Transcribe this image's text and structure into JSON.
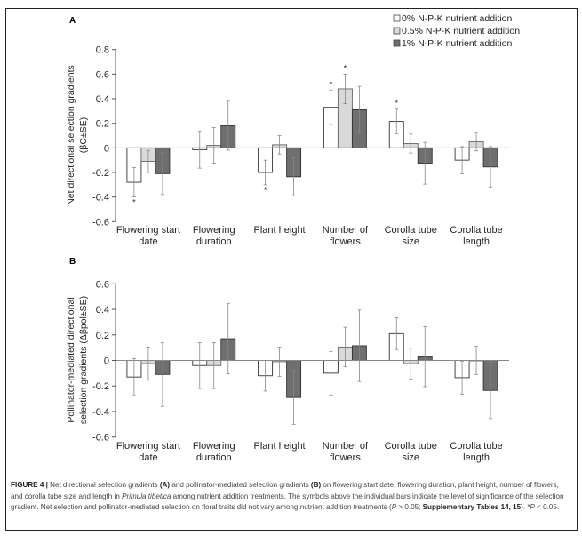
{
  "legend": [
    {
      "label": "0% N-P-K nutrient addition",
      "color": "#ffffff"
    },
    {
      "label": "0.5% N-P-K nutrient addition",
      "color": "#d9d9d9"
    },
    {
      "label": "1% N-P-K nutrient addition",
      "color": "#6f6f6f"
    }
  ],
  "chart_data": [
    {
      "type": "bar",
      "panel": "A",
      "ylabel_line1": "Net directional selection gradients",
      "ylabel_line2": "(βC±SE)",
      "ylim": [
        -0.6,
        0.8
      ],
      "yticks": [
        "0.8",
        "0.6",
        "0.4",
        "0.2",
        "0",
        "-0.2",
        "-0.4",
        "-0.6"
      ],
      "categories": [
        [
          "Flowering start",
          "date"
        ],
        [
          "Flowering",
          "duration"
        ],
        [
          "Plant height",
          ""
        ],
        [
          "Number of",
          "flowers"
        ],
        [
          "Corolla tube",
          "size"
        ],
        [
          "Corolla tube",
          "length"
        ]
      ],
      "series": [
        {
          "name": "0% N-P-K nutrient addition",
          "values": [
            -0.28,
            -0.015,
            -0.2,
            0.33,
            0.215,
            -0.1
          ],
          "se": [
            0.12,
            0.15,
            0.1,
            0.14,
            0.1,
            0.11
          ],
          "significant": [
            true,
            false,
            true,
            true,
            true,
            false
          ]
        },
        {
          "name": "0.5% N-P-K nutrient addition",
          "values": [
            -0.11,
            0.02,
            0.025,
            0.48,
            0.035,
            0.05
          ],
          "se": [
            0.09,
            0.145,
            0.075,
            0.12,
            0.077,
            0.075
          ],
          "significant": [
            false,
            false,
            false,
            true,
            false,
            false
          ]
        },
        {
          "name": "1% N-P-K nutrient addition",
          "values": [
            -0.21,
            0.18,
            -0.235,
            0.31,
            -0.125,
            -0.155
          ],
          "se": [
            0.17,
            0.2,
            0.155,
            0.19,
            0.17,
            0.165
          ],
          "significant": [
            false,
            false,
            false,
            false,
            false,
            false
          ]
        }
      ],
      "significance_symbol": "*"
    },
    {
      "type": "bar",
      "panel": "B",
      "ylabel_line1": "Pollinator-mediated directional",
      "ylabel_line2": "selection gradients (Δβpol±SE)",
      "ylim": [
        -0.6,
        0.6
      ],
      "yticks": [
        "0.6",
        "0.4",
        "0.2",
        "0",
        "-0.2",
        "-0.4",
        "-0.6"
      ],
      "categories": [
        [
          "Flowering start",
          "date"
        ],
        [
          "Flowering",
          "duration"
        ],
        [
          "Plant height",
          ""
        ],
        [
          "Number of",
          "flowers"
        ],
        [
          "Corolla tube",
          "size"
        ],
        [
          "Corolla tube",
          "length"
        ]
      ],
      "series": [
        {
          "name": "0% N-P-K nutrient addition",
          "values": [
            -0.13,
            -0.04,
            -0.12,
            -0.1,
            0.21,
            -0.135
          ],
          "se": [
            0.145,
            0.18,
            0.12,
            0.17,
            0.125,
            0.13
          ]
        },
        {
          "name": "0.5% N-P-K nutrient addition",
          "values": [
            -0.025,
            -0.04,
            -0.01,
            0.105,
            -0.025,
            0.0
          ],
          "se": [
            0.13,
            0.18,
            0.115,
            0.155,
            0.12,
            0.11
          ]
        },
        {
          "name": "1% N-P-K nutrient addition",
          "values": [
            -0.11,
            0.17,
            -0.29,
            0.115,
            0.03,
            -0.235
          ],
          "se": [
            0.25,
            0.275,
            0.21,
            0.28,
            0.235,
            0.22
          ]
        }
      ]
    }
  ],
  "caption": {
    "label": "FIGURE 4 |",
    "t1": " Net directional selection gradients ",
    "a": "(A)",
    "t2": " and pollinator-mediated selection gradients ",
    "b": "(B)",
    "t3": " on flowering start date, flowering duration, plant height, number of flowers, and corolla tube size and length in ",
    "species": "Primula tibetica",
    "t4": " among nutrient addition treatments. The symbols above the individual bars indicate the level of significance of the selection gradient. Net selection and pollinator-mediated selection on floral traits did not vary among nutrient addition treatments (",
    "p1": "P",
    "t5": " > 0.05; ",
    "supp": "Supplementary Tables 14, 15",
    "t6": "). *",
    "p2": "P",
    "t7": " < 0.05."
  }
}
